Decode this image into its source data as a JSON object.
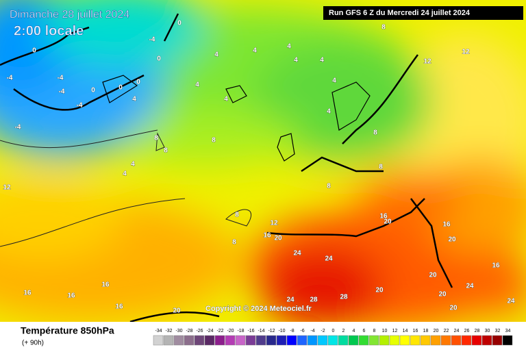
{
  "header": {
    "date": "Dimanche 28 juillet 2024",
    "time": "2:00 locale",
    "run": "Run GFS 6 Z du Mercredi 24 juillet 2024"
  },
  "map": {
    "copyright": "Copyright © 2024 Meteociel.fr",
    "labels": [
      -4,
      -4,
      -4,
      -4,
      -4,
      -4,
      0,
      0,
      0,
      0,
      0,
      0,
      4,
      4,
      4,
      4,
      4,
      4,
      4,
      4,
      4,
      4,
      4,
      4,
      8,
      8,
      8,
      8,
      8,
      8,
      8,
      8,
      8,
      12,
      12,
      12,
      12,
      16,
      16,
      16,
      16,
      16,
      16,
      16,
      16,
      20,
      20,
      20,
      20,
      20,
      20,
      20,
      20,
      24,
      24,
      24,
      24,
      24,
      28,
      28
    ]
  },
  "footer": {
    "title": "Température 850hPa",
    "lead": "(+ 90h)",
    "scale": [
      {
        "value": -34,
        "color": "#d2d2d2"
      },
      {
        "value": -32,
        "color": "#b4b4b4"
      },
      {
        "value": -30,
        "color": "#a08ca0"
      },
      {
        "value": -28,
        "color": "#8c6e8c"
      },
      {
        "value": -26,
        "color": "#6e4678"
      },
      {
        "value": -24,
        "color": "#5a2864"
      },
      {
        "value": -22,
        "color": "#8c1e8c"
      },
      {
        "value": -20,
        "color": "#b43cb4"
      },
      {
        "value": -18,
        "color": "#c864c8"
      },
      {
        "value": -16,
        "color": "#7a3c96"
      },
      {
        "value": -14,
        "color": "#503c8c"
      },
      {
        "value": -12,
        "color": "#28288c"
      },
      {
        "value": -10,
        "color": "#1e1eb4"
      },
      {
        "value": -8,
        "color": "#0000ff"
      },
      {
        "value": -6,
        "color": "#1e64ff"
      },
      {
        "value": -4,
        "color": "#0096ff"
      },
      {
        "value": -2,
        "color": "#00c8ff"
      },
      {
        "value": 0,
        "color": "#00e6e6"
      },
      {
        "value": 2,
        "color": "#00dca0"
      },
      {
        "value": 4,
        "color": "#00c850"
      },
      {
        "value": 6,
        "color": "#32dc32"
      },
      {
        "value": 8,
        "color": "#82e632"
      },
      {
        "value": 10,
        "color": "#b4f000"
      },
      {
        "value": 12,
        "color": "#e6ff00"
      },
      {
        "value": 14,
        "color": "#ffff00"
      },
      {
        "value": 16,
        "color": "#ffe600"
      },
      {
        "value": 18,
        "color": "#ffc800"
      },
      {
        "value": 20,
        "color": "#ffa000"
      },
      {
        "value": 22,
        "color": "#ff7800"
      },
      {
        "value": 24,
        "color": "#ff5000"
      },
      {
        "value": 26,
        "color": "#ff2800"
      },
      {
        "value": 28,
        "color": "#e60000"
      },
      {
        "value": 30,
        "color": "#be0000"
      },
      {
        "value": 32,
        "color": "#960000"
      },
      {
        "value": 34,
        "color": "#000000"
      }
    ]
  }
}
